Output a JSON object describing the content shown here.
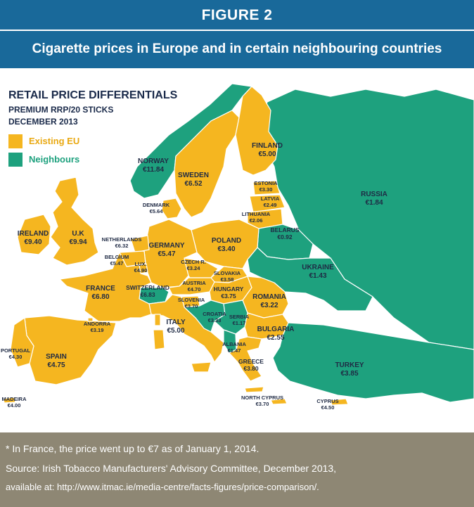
{
  "figure": {
    "label": "FIGURE 2",
    "title": "Cigarette prices in Europe and in certain neighbouring countries"
  },
  "legend": {
    "title": "RETAIL PRICE DIFFERENTIALS",
    "subtitle_1": "PREMIUM RRP/20 STICKS",
    "subtitle_2": "DECEMBER 2013",
    "items": [
      {
        "label": "Existing EU",
        "color": "#f5b620"
      },
      {
        "label": "Neighbours",
        "color": "#1ea17e"
      }
    ]
  },
  "countries": {
    "finland": {
      "name": "FINLAND",
      "price": "€5.00"
    },
    "norway": {
      "name": "NORWAY",
      "price": "€11.84"
    },
    "sweden": {
      "name": "SWEDEN",
      "price": "€6.52"
    },
    "estonia": {
      "name": "ESTONIA",
      "price": "€3.30"
    },
    "latvia": {
      "name": "LATVIA",
      "price": "€2.49"
    },
    "lithuania": {
      "name": "LITHUANIA",
      "price": "€2.06"
    },
    "russia": {
      "name": "RUSSIA",
      "price": "€1.84"
    },
    "denmark": {
      "name": "DENMARK",
      "price": "€5.64"
    },
    "ireland": {
      "name": "IRELAND",
      "price": "€9.40"
    },
    "uk": {
      "name": "U.K",
      "price": "€9.94"
    },
    "netherlands": {
      "name": "NETHERLANDS",
      "price": "€6.32"
    },
    "belgium": {
      "name": "BELGIUM",
      "price": "€5.47"
    },
    "lux": {
      "name": "LUX.",
      "price": "€4.90"
    },
    "germany": {
      "name": "GERMANY",
      "price": "€5.47"
    },
    "poland": {
      "name": "POLAND",
      "price": "€3.40"
    },
    "belarus": {
      "name": "BELARUS",
      "price": "€0.92"
    },
    "ukraine": {
      "name": "UKRAINE",
      "price": "€1.43"
    },
    "czech": {
      "name": "CZECH R.",
      "price": "€3.24"
    },
    "slovakia": {
      "name": "SLOVAKIA",
      "price": "€3.58"
    },
    "france": {
      "name": "FRANCE",
      "price": "€6.80"
    },
    "switzerland": {
      "name": "SWITZERLAND",
      "price": "€6.83"
    },
    "austria": {
      "name": "AUSTRIA",
      "price": "€4.70"
    },
    "hungary": {
      "name": "HUNGARY",
      "price": "€3.75"
    },
    "romania": {
      "name": "ROMANIA",
      "price": "€3.22"
    },
    "slovenia": {
      "name": "SLOVENIA",
      "price": "€3.70"
    },
    "croatia": {
      "name": "CROATIA",
      "price": "€3.33"
    },
    "serbia": {
      "name": "SERBIA",
      "price": "€1.17"
    },
    "andorra": {
      "name": "ANDORRA",
      "price": "€3.19"
    },
    "italy": {
      "name": "ITALY",
      "price": "€5.00"
    },
    "bulgaria": {
      "name": "BULGARIA",
      "price": "€2.55"
    },
    "portugal": {
      "name": "PORTUGAL",
      "price": "€4.30"
    },
    "spain": {
      "name": "SPAIN",
      "price": "€4.75"
    },
    "albania": {
      "name": "ALBANIA",
      "price": "€1.47"
    },
    "greece": {
      "name": "GREECE",
      "price": "€3.80"
    },
    "turkey": {
      "name": "TURKEY",
      "price": "€3.85"
    },
    "madeira": {
      "name": "MADEIRA",
      "price": "€4.00"
    },
    "north_cyprus": {
      "name": "NORTH CYPRUS",
      "price": "€3.70"
    },
    "cyprus": {
      "name": "CYPRUS",
      "price": "€4.50"
    }
  },
  "footer": {
    "note": "* In France, the price went up to €7 as of January 1, 2014.",
    "source": "Source: Irish Tobacco Manufacturers' Advisory Committee, December 2013,",
    "link": "available at: http://www.itmac.ie/media-centre/facts-figures/price-comparison/."
  }
}
